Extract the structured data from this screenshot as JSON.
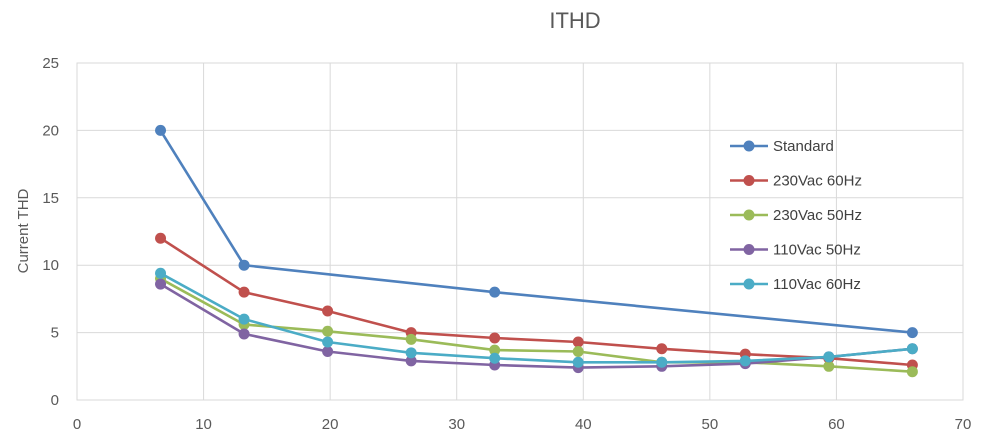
{
  "chart_data": {
    "type": "line",
    "title": "ITHD",
    "xlabel": "",
    "ylabel": "Current THD",
    "xlim": [
      0,
      70
    ],
    "ylim": [
      0,
      25
    ],
    "x_ticks": [
      0,
      10,
      20,
      30,
      40,
      50,
      60,
      70
    ],
    "y_ticks": [
      0,
      5,
      10,
      15,
      20,
      25
    ],
    "grid": true,
    "legend_position": "right",
    "x": [
      6.6,
      13.2,
      19.8,
      26.4,
      33,
      39.6,
      46.2,
      52.8,
      59.4,
      66
    ],
    "series": [
      {
        "name": "Standard",
        "color": "#4f81bd",
        "points": [
          [
            6.6,
            20
          ],
          [
            13.2,
            10
          ],
          [
            33,
            8
          ],
          [
            66,
            5
          ]
        ]
      },
      {
        "name": "230Vac 60Hz",
        "color": "#c0504d",
        "points": [
          [
            6.6,
            12
          ],
          [
            13.2,
            8
          ],
          [
            19.8,
            6.6
          ],
          [
            26.4,
            5
          ],
          [
            33,
            4.6
          ],
          [
            39.6,
            4.3
          ],
          [
            46.2,
            3.8
          ],
          [
            52.8,
            3.4
          ],
          [
            59.4,
            3.1
          ],
          [
            66,
            2.6
          ]
        ]
      },
      {
        "name": "230Vac 50Hz",
        "color": "#9bbb59",
        "points": [
          [
            6.6,
            9
          ],
          [
            13.2,
            5.6
          ],
          [
            19.8,
            5.1
          ],
          [
            26.4,
            4.5
          ],
          [
            33,
            3.7
          ],
          [
            39.6,
            3.6
          ],
          [
            46.2,
            2.8
          ],
          [
            52.8,
            2.8
          ],
          [
            59.4,
            2.5
          ],
          [
            66,
            2.1
          ]
        ]
      },
      {
        "name": "110Vac 50Hz",
        "color": "#8064a2",
        "points": [
          [
            6.6,
            8.6
          ],
          [
            13.2,
            4.9
          ],
          [
            19.8,
            3.6
          ],
          [
            26.4,
            2.9
          ],
          [
            33,
            2.6
          ],
          [
            39.6,
            2.4
          ],
          [
            46.2,
            2.5
          ],
          [
            52.8,
            2.7
          ],
          [
            59.4,
            3.2
          ],
          [
            66,
            3.8
          ]
        ]
      },
      {
        "name": "110Vac 60Hz",
        "color": "#4bacc6",
        "points": [
          [
            6.6,
            9.4
          ],
          [
            13.2,
            6
          ],
          [
            19.8,
            4.3
          ],
          [
            26.4,
            3.5
          ],
          [
            33,
            3.1
          ],
          [
            39.6,
            2.8
          ],
          [
            46.2,
            2.8
          ],
          [
            52.8,
            2.9
          ],
          [
            59.4,
            3.2
          ],
          [
            66,
            3.8
          ]
        ]
      }
    ]
  }
}
